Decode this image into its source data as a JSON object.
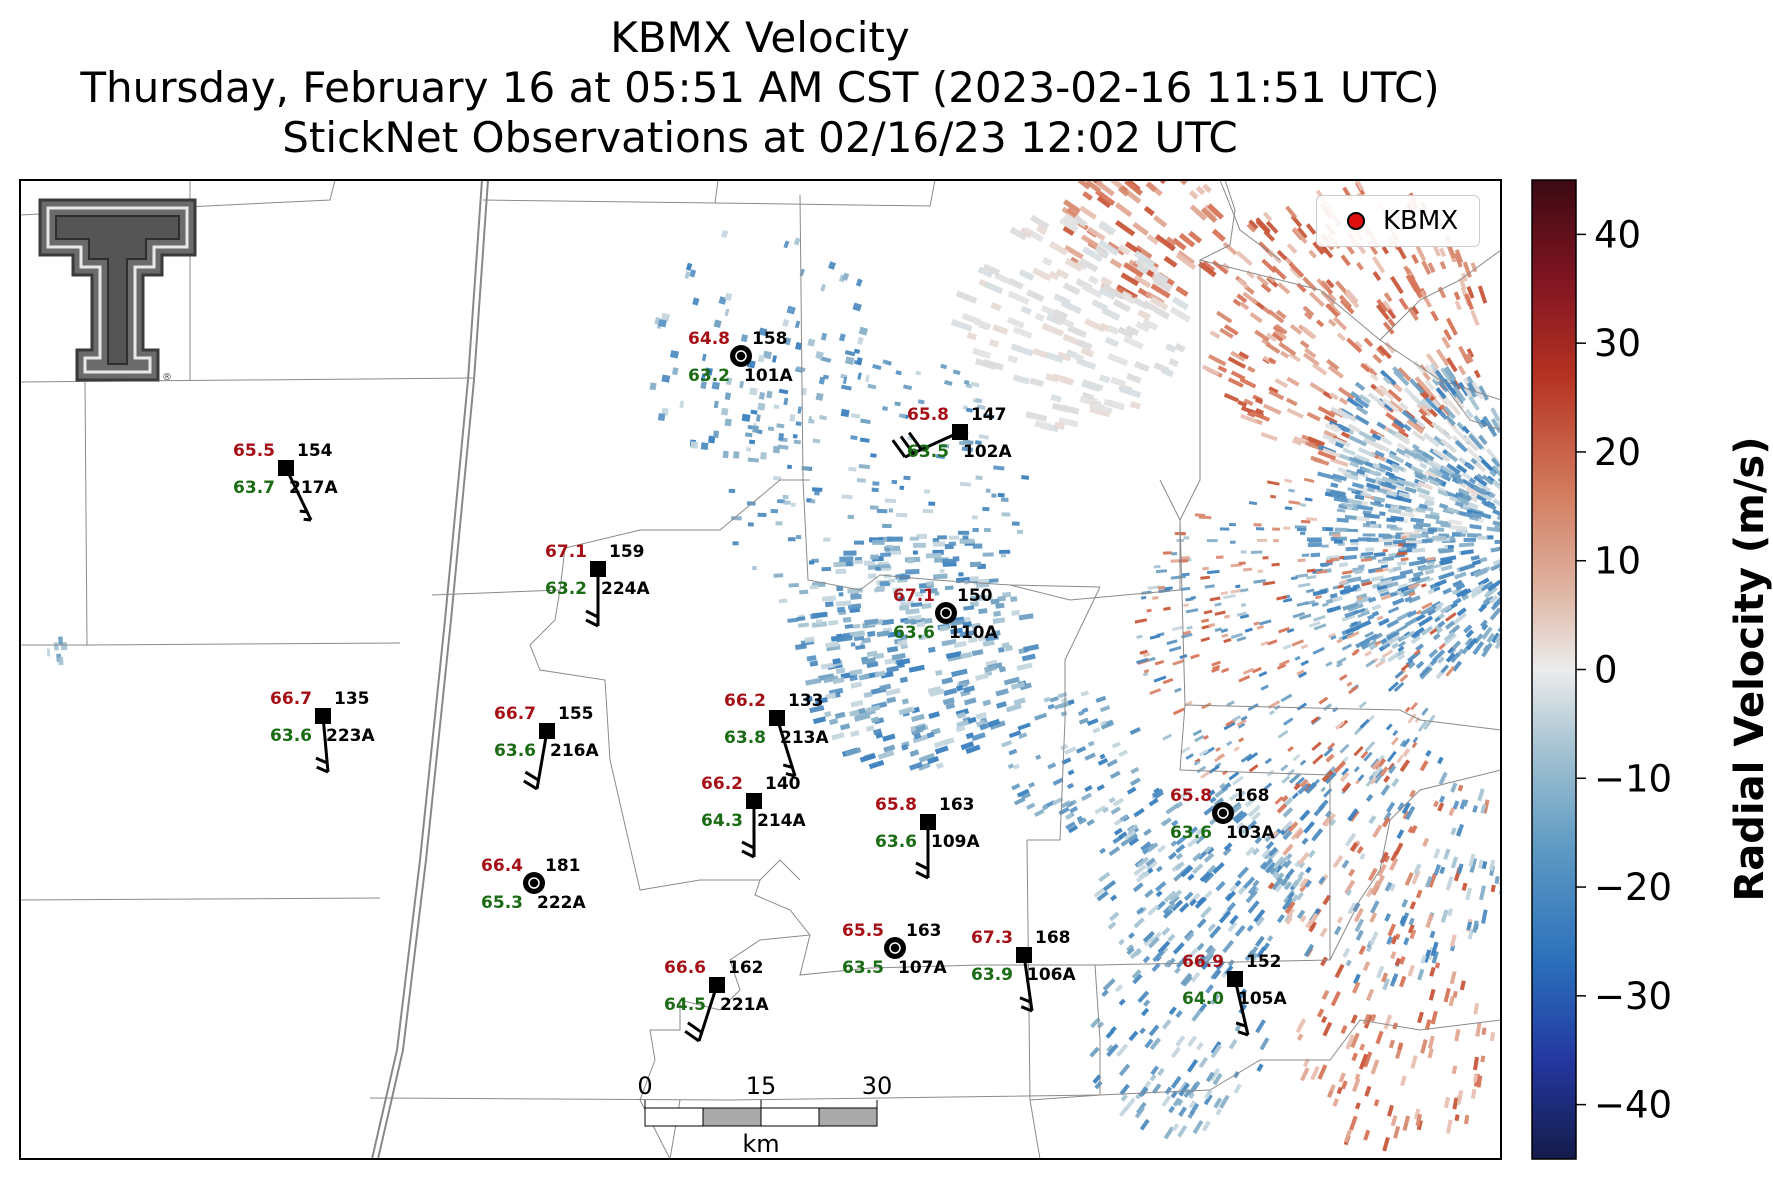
{
  "title": {
    "line1": "KBMX Velocity",
    "line2": "Thursday, February 16 at 05:51 AM CST (2023-02-16 11:51 UTC)",
    "line3": "StickNet Observations at 02/16/23 12:02 UTC"
  },
  "logo": {
    "name": "texas-tech-double-t-logo",
    "registered_mark": "®"
  },
  "legend": {
    "marker_color": "#e01010",
    "label": "KBMX"
  },
  "colorbar": {
    "label": "Radial Velocity (m/s)",
    "min": -45,
    "max": 45,
    "ticks": [
      -40,
      -30,
      -20,
      -10,
      0,
      10,
      20,
      30,
      40
    ],
    "tick_labels": [
      "−40",
      "−30",
      "−20",
      "−10",
      "0",
      "10",
      "20",
      "30",
      "40"
    ]
  },
  "scale_bar": {
    "tick_labels": [
      "0",
      "15",
      "30"
    ],
    "unit": "km"
  },
  "stations": [
    {
      "id": "101A",
      "temp": "64.8",
      "dew": "63.2",
      "pressure": "158",
      "calm": true
    },
    {
      "id": "102A",
      "temp": "65.8",
      "dew": "63.5",
      "pressure": "147",
      "calm": false
    },
    {
      "id": "217A",
      "temp": "65.5",
      "dew": "63.7",
      "pressure": "154",
      "calm": false
    },
    {
      "id": "224A",
      "temp": "67.1",
      "dew": "63.2",
      "pressure": "159",
      "calm": false
    },
    {
      "id": "110A",
      "temp": "67.1",
      "dew": "63.6",
      "pressure": "150",
      "calm": true
    },
    {
      "id": "223A",
      "temp": "66.7",
      "dew": "63.6",
      "pressure": "135",
      "calm": false
    },
    {
      "id": "216A",
      "temp": "66.7",
      "dew": "63.6",
      "pressure": "155",
      "calm": false
    },
    {
      "id": "213A",
      "temp": "66.2",
      "dew": "63.8",
      "pressure": "133",
      "calm": false
    },
    {
      "id": "214A",
      "temp": "66.2",
      "dew": "64.3",
      "pressure": "140",
      "calm": false
    },
    {
      "id": "109A",
      "temp": "65.8",
      "dew": "63.6",
      "pressure": "163",
      "calm": false
    },
    {
      "id": "103A",
      "temp": "65.8",
      "dew": "63.6",
      "pressure": "168",
      "calm": true
    },
    {
      "id": "222A",
      "temp": "66.4",
      "dew": "65.3",
      "pressure": "181",
      "calm": true
    },
    {
      "id": "107A",
      "temp": "65.5",
      "dew": "63.5",
      "pressure": "163",
      "calm": true
    },
    {
      "id": "106A",
      "temp": "67.3",
      "dew": "63.9",
      "pressure": "168",
      "calm": false
    },
    {
      "id": "105A",
      "temp": "66.9",
      "dew": "64.0",
      "pressure": "152",
      "calm": false
    },
    {
      "id": "221A",
      "temp": "66.6",
      "dew": "64.5",
      "pressure": "162",
      "calm": false
    }
  ]
}
